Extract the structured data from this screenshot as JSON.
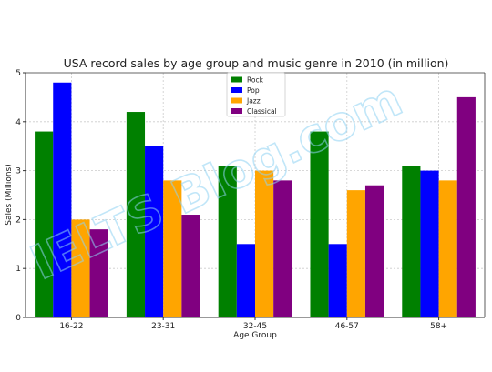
{
  "chart_data": {
    "type": "bar",
    "title": "USA record sales by age group and music genre in 2010 (in million)",
    "xlabel": "Age Group",
    "ylabel": "Sales (Millions)",
    "ylim": [
      0,
      5
    ],
    "yticks": [
      "0",
      "1",
      "2",
      "3",
      "4",
      "5"
    ],
    "grid": true,
    "legend_position": "top-center",
    "categories": [
      "16-22",
      "23-31",
      "32-45",
      "46-57",
      "58+"
    ],
    "series": [
      {
        "name": "Rock",
        "color": "#008000",
        "values": [
          3.8,
          4.2,
          3.1,
          3.8,
          3.1
        ]
      },
      {
        "name": "Pop",
        "color": "#0000ff",
        "values": [
          4.8,
          3.5,
          1.5,
          1.5,
          3.0
        ]
      },
      {
        "name": "Jazz",
        "color": "#ffa500",
        "values": [
          2.0,
          2.8,
          3.0,
          2.6,
          2.8
        ]
      },
      {
        "name": "Classical",
        "color": "#800080",
        "values": [
          1.8,
          2.1,
          2.8,
          2.7,
          4.5
        ]
      }
    ],
    "watermark": "IELTS Blog.com"
  }
}
